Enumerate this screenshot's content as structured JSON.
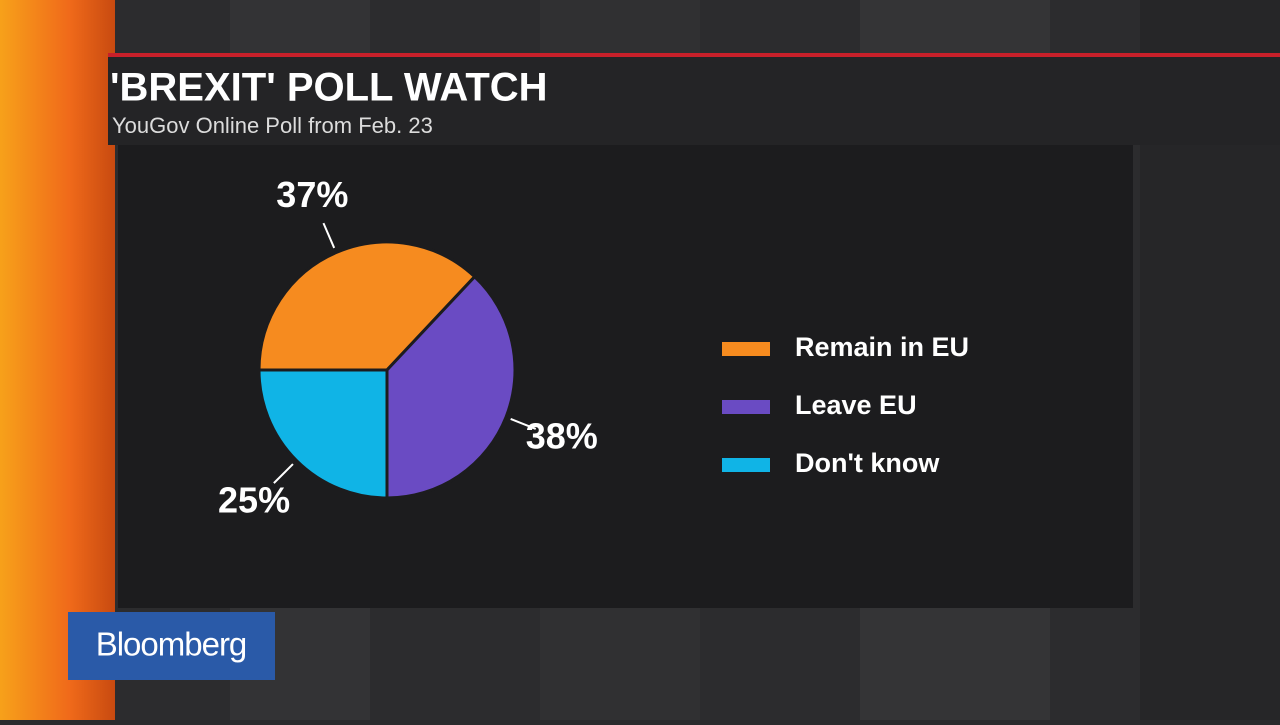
{
  "chart_data": {
    "type": "pie",
    "title": "'BREXIT' POLL WATCH",
    "subtitle": "YouGov Online Poll from Feb. 23",
    "categories": [
      "Remain in EU",
      "Leave EU",
      "Don't know"
    ],
    "values": [
      37,
      38,
      25
    ],
    "value_labels": [
      "37%",
      "38%",
      "25%"
    ],
    "colors": [
      "#f68b1f",
      "#6a4bc3",
      "#10b4e6"
    ],
    "legend": "right"
  },
  "logo": "Bloomberg"
}
